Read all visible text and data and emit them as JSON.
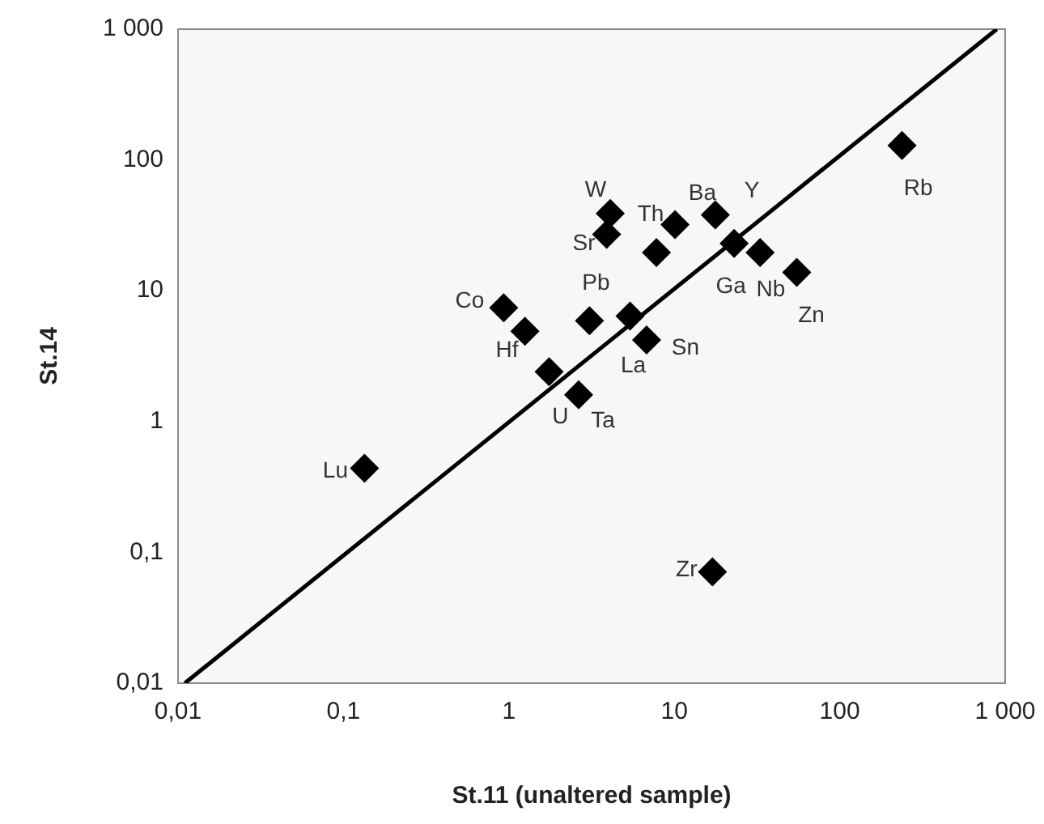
{
  "chart_data": {
    "type": "scatter",
    "xlabel": "St.11 (unaltered sample)",
    "ylabel": "St.14",
    "log": "xy",
    "grid": false,
    "legend": false,
    "marker": "diamond",
    "xlim": [
      0.01,
      1000
    ],
    "ylim": [
      0.01,
      1000
    ],
    "xticks": [
      {
        "value": 0.01,
        "label": "0,01"
      },
      {
        "value": 0.1,
        "label": "0,1"
      },
      1,
      10,
      100,
      {
        "value": 1000,
        "label": "1 000"
      }
    ],
    "yticks": [
      {
        "value": 0.01,
        "label": "0,01"
      },
      {
        "value": 0.1,
        "label": "0,1"
      },
      1,
      10,
      100,
      {
        "value": 1000,
        "label": "1 000"
      }
    ],
    "series": [
      {
        "type": "scatter",
        "color": "#000000",
        "x": [
          4.1,
          3.9,
          10.1,
          7.8,
          17.7,
          23,
          33,
          55,
          238,
          0.93,
          1.25,
          3.07,
          5.4,
          6.8,
          1.75,
          2.64,
          0.134,
          17
        ],
        "values": [
          39,
          27,
          32,
          19.6,
          38,
          23,
          19.6,
          13.8,
          129,
          7.4,
          4.9,
          5.9,
          6.4,
          4.2,
          2.4,
          1.6,
          0.44,
          0.071
        ]
      },
      {
        "type": "line",
        "color": "#000000",
        "marker": "none",
        "x": [
          0.011,
          890
        ],
        "values": [
          0.01,
          1000
        ]
      }
    ],
    "annotations": [
      {
        "text": "W",
        "x": 4.1,
        "y": 39
      },
      {
        "text": "Sr",
        "x": 3.9,
        "y": 27
      },
      {
        "text": "Th",
        "x": 10.1,
        "y": 32
      },
      {
        "text": "Ba",
        "x": 17.7,
        "y": 38
      },
      {
        "text": "Y",
        "x": 23,
        "y": 23
      },
      {
        "text": "Ga",
        "x": 33,
        "y": 19.6
      },
      {
        "text": "Nb",
        "x": 55,
        "y": 13.8
      },
      {
        "text": "Zn",
        "x": 55,
        "y": 13.8
      },
      {
        "text": "Rb",
        "x": 238,
        "y": 129
      },
      {
        "text": "Co",
        "x": 0.93,
        "y": 7.4
      },
      {
        "text": "Hf",
        "x": 1.25,
        "y": 4.9
      },
      {
        "text": "Pb",
        "x": 3.07,
        "y": 5.9
      },
      {
        "text": "La",
        "x": 5.4,
        "y": 6.4
      },
      {
        "text": "Sn",
        "x": 6.8,
        "y": 4.2
      },
      {
        "text": "U",
        "x": 1.75,
        "y": 2.4
      },
      {
        "text": "Ta",
        "x": 2.64,
        "y": 1.6
      },
      {
        "text": "Lu",
        "x": 0.134,
        "y": 0.44
      },
      {
        "text": "Zr",
        "x": 17,
        "y": 0.071
      }
    ]
  }
}
